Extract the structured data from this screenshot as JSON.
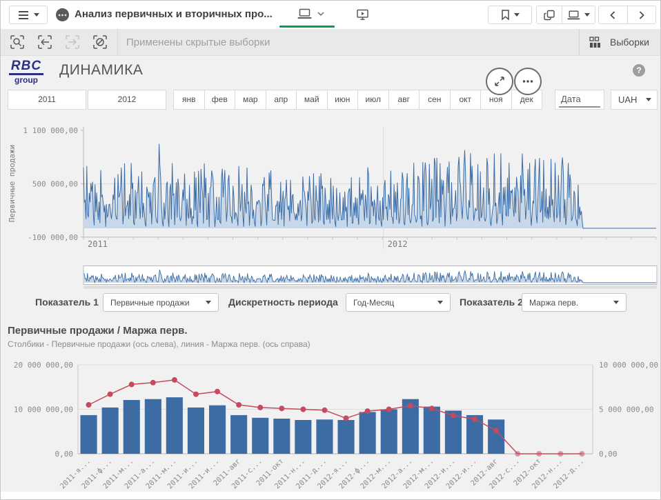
{
  "toolbar": {
    "app_title": "Анализ первичных и вторичных про...",
    "selections_status": "Применены скрытые выборки",
    "selections_tool_label": "Выборки"
  },
  "header": {
    "logo_top": "RBC",
    "logo_bottom": "group",
    "title": "ДИНАМИКА",
    "help_glyph": "?"
  },
  "filters": {
    "years": [
      "2011",
      "2012"
    ],
    "months": [
      "янв",
      "фев",
      "мар",
      "апр",
      "май",
      "июн",
      "июл",
      "авг",
      "сен",
      "окт",
      "ноя",
      "дек"
    ],
    "date_label": "Дата",
    "currency": "UAH"
  },
  "controls": {
    "indicator1_label": "Показатель 1",
    "indicator1_value": "Первичные продажи",
    "period_label": "Дискретность периода",
    "period_value": "Год-Месяц",
    "indicator2_label": "Показатель 2",
    "indicator2_value": "Маржа перв."
  },
  "chart_data": [
    {
      "type": "area",
      "role": "daily-primary-sales",
      "ylabel": "Первичные продажи",
      "y_ticks": [
        "1 100 000,00",
        "500 000,00",
        "-100 000,00"
      ],
      "y_tick_values": [
        1100000,
        500000,
        -100000
      ],
      "ylim": [
        -100000,
        1140000
      ],
      "x_year_labels": [
        "2011",
        "2012"
      ],
      "x_year_day_index": [
        0,
        365
      ],
      "n_days_total": 698,
      "n_days_with_data": 608,
      "seed": 12345,
      "value_range": [
        15000,
        1060000
      ],
      "note": "daily noisy series Jan2011-Aug2012, weekly dips, peaks ~1.05M mid-2012, zero flat tail Sep-Dec 2012",
      "line_color": "#3c6ca5",
      "fill_color": "#c9d8e9"
    },
    {
      "type": "area",
      "role": "navigator",
      "note": "miniature of same daily series, full range selected",
      "line_color": "#3c6ca5",
      "fill_color": "#c9d8e9"
    },
    {
      "type": "combo",
      "title": "Первичные продажи / Маржа перв.",
      "subtitle": "Столбики - Первичные продажи (ось слева), линия - Маржа перв. (ось справа)",
      "categories": [
        "2011-я...",
        "2011-ф...",
        "2011-м...",
        "2011-а...",
        "2011-м...",
        "2011-и...",
        "2011-и...",
        "2011-авг",
        "2011-с...",
        "2011-окт",
        "2011-н...",
        "2011-д...",
        "2012-я...",
        "2012-ф...",
        "2012-м...",
        "2012-а...",
        "2012-м...",
        "2012-и...",
        "2012-и...",
        "2012-авг",
        "2012-с...",
        "2012-окт",
        "2012-н...",
        "2012-д..."
      ],
      "series": [
        {
          "name": "Первичные продажи",
          "kind": "bar",
          "axis": "left",
          "values": [
            8700000,
            10400000,
            12100000,
            12300000,
            12700000,
            10400000,
            10900000,
            8700000,
            8100000,
            7900000,
            7600000,
            7700000,
            7600000,
            9400000,
            10000000,
            12300000,
            10600000,
            9700000,
            8700000,
            7700000,
            null,
            null,
            null,
            null
          ]
        },
        {
          "name": "Маржа перв.",
          "kind": "line",
          "axis": "right",
          "values": [
            5500000,
            6700000,
            7800000,
            8000000,
            8300000,
            6700000,
            7000000,
            5500000,
            5200000,
            5100000,
            5000000,
            4900000,
            4000000,
            4800000,
            5000000,
            5400000,
            5100000,
            4300000,
            3900000,
            2600000,
            0,
            0,
            0,
            0
          ]
        }
      ],
      "left_axis": {
        "ticks": [
          "20 000 000,00",
          "10 000 000,00",
          "0,00"
        ],
        "max": 20000000
      },
      "right_axis": {
        "ticks": [
          "10 000 000,00",
          "5 000 000,00",
          "0,00"
        ],
        "max": 10000000
      },
      "bar_color": "#3d6ca4",
      "line_color": "#c64a5e"
    }
  ]
}
